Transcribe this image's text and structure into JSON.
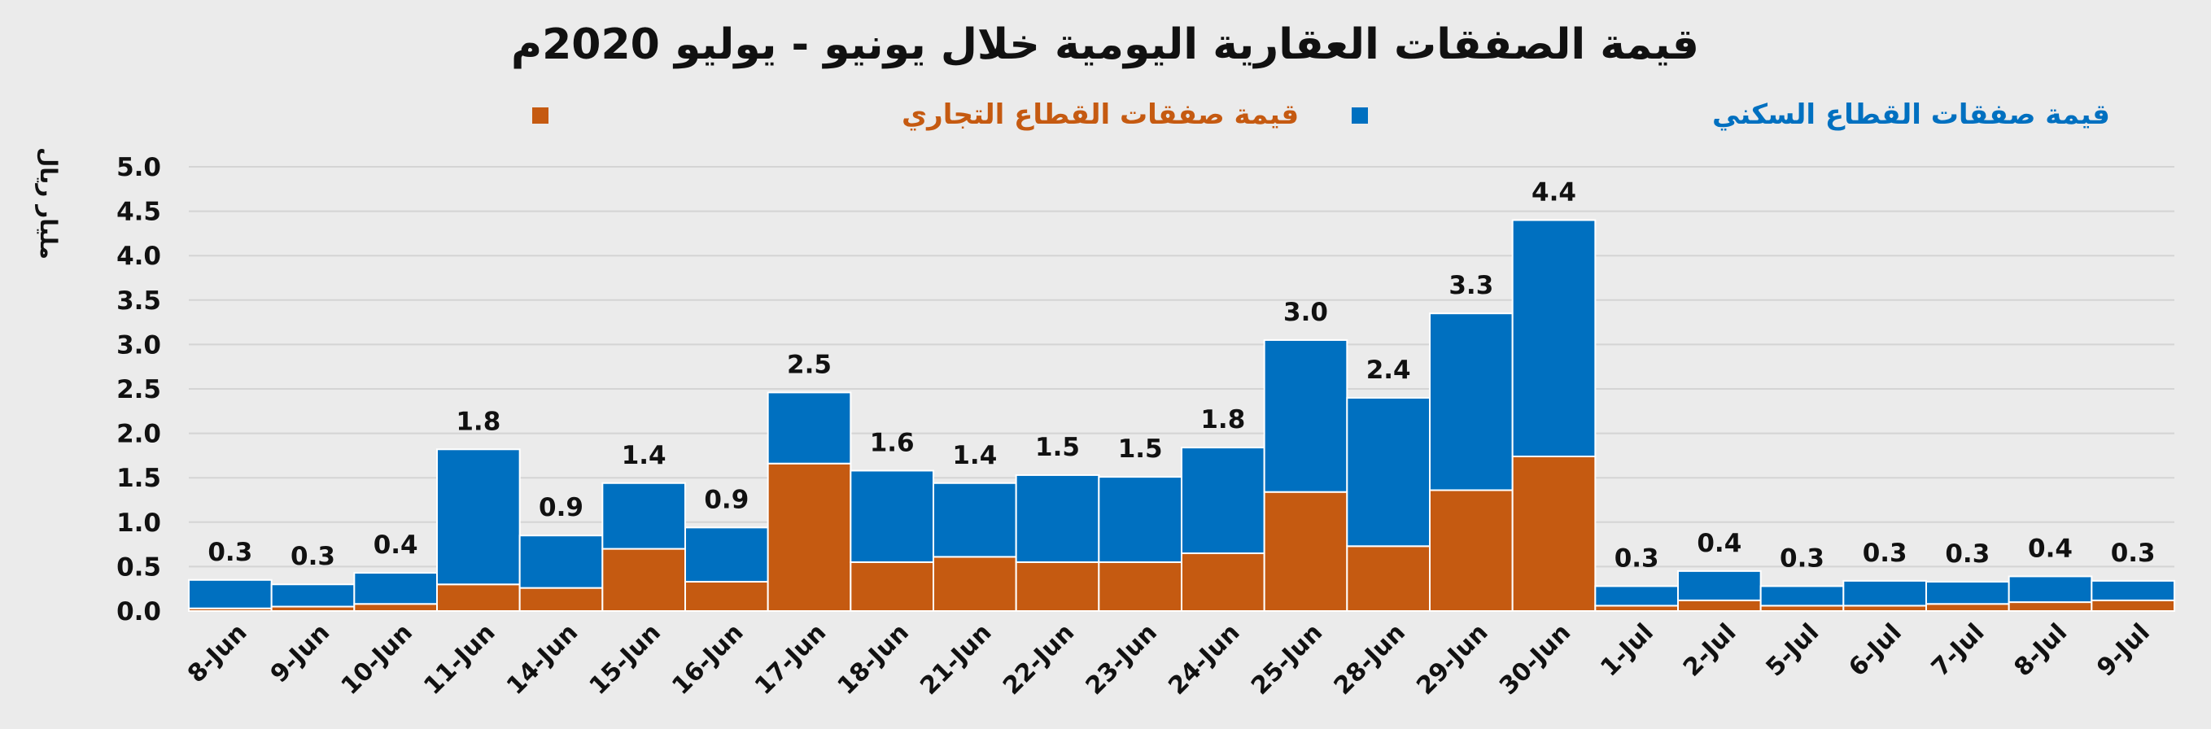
{
  "chart_data": {
    "type": "bar",
    "stacked": true,
    "title": "قيمة الصفقات العقارية اليومية خلال يونيو - يوليو 2020م",
    "ylabel": "مليار ريال",
    "xlabel": "",
    "ylim": [
      0,
      5
    ],
    "yticks": [
      "0.0",
      "0.5",
      "1.0",
      "1.5",
      "2.0",
      "2.5",
      "3.0",
      "3.5",
      "4.0",
      "4.5",
      "5.0"
    ],
    "grid": true,
    "legend_position": "top",
    "categories": [
      "8-Jun",
      "9-Jun",
      "10-Jun",
      "11-Jun",
      "14-Jun",
      "15-Jun",
      "16-Jun",
      "17-Jun",
      "18-Jun",
      "21-Jun",
      "22-Jun",
      "23-Jun",
      "24-Jun",
      "25-Jun",
      "28-Jun",
      "29-Jun",
      "30-Jun",
      "1-Jul",
      "2-Jul",
      "5-Jul",
      "6-Jul",
      "7-Jul",
      "8-Jul",
      "9-Jul"
    ],
    "series": [
      {
        "name": "قيمة صفقات القطاع التجاري",
        "color": "#c55a11",
        "values": [
          0.03,
          0.05,
          0.08,
          0.3,
          0.26,
          0.7,
          0.33,
          1.66,
          0.55,
          0.61,
          0.55,
          0.55,
          0.65,
          1.34,
          0.73,
          1.36,
          1.74,
          0.06,
          0.12,
          0.06,
          0.06,
          0.08,
          0.1,
          0.12
        ]
      },
      {
        "name": "قيمة صفقات القطاع السكني",
        "color": "#0070c0",
        "values": [
          0.32,
          0.25,
          0.35,
          1.52,
          0.59,
          0.74,
          0.61,
          0.8,
          1.03,
          0.83,
          0.98,
          0.96,
          1.19,
          1.71,
          1.67,
          1.99,
          2.66,
          0.22,
          0.33,
          0.22,
          0.28,
          0.25,
          0.29,
          0.22
        ]
      }
    ],
    "totals": [
      "0.3",
      "0.3",
      "0.4",
      "1.8",
      "0.9",
      "1.4",
      "0.9",
      "2.5",
      "1.6",
      "1.4",
      "1.5",
      "1.5",
      "1.8",
      "3.0",
      "2.4",
      "3.3",
      "4.4",
      "0.3",
      "0.4",
      "0.3",
      "0.3",
      "0.3",
      "0.4",
      "0.3"
    ]
  }
}
